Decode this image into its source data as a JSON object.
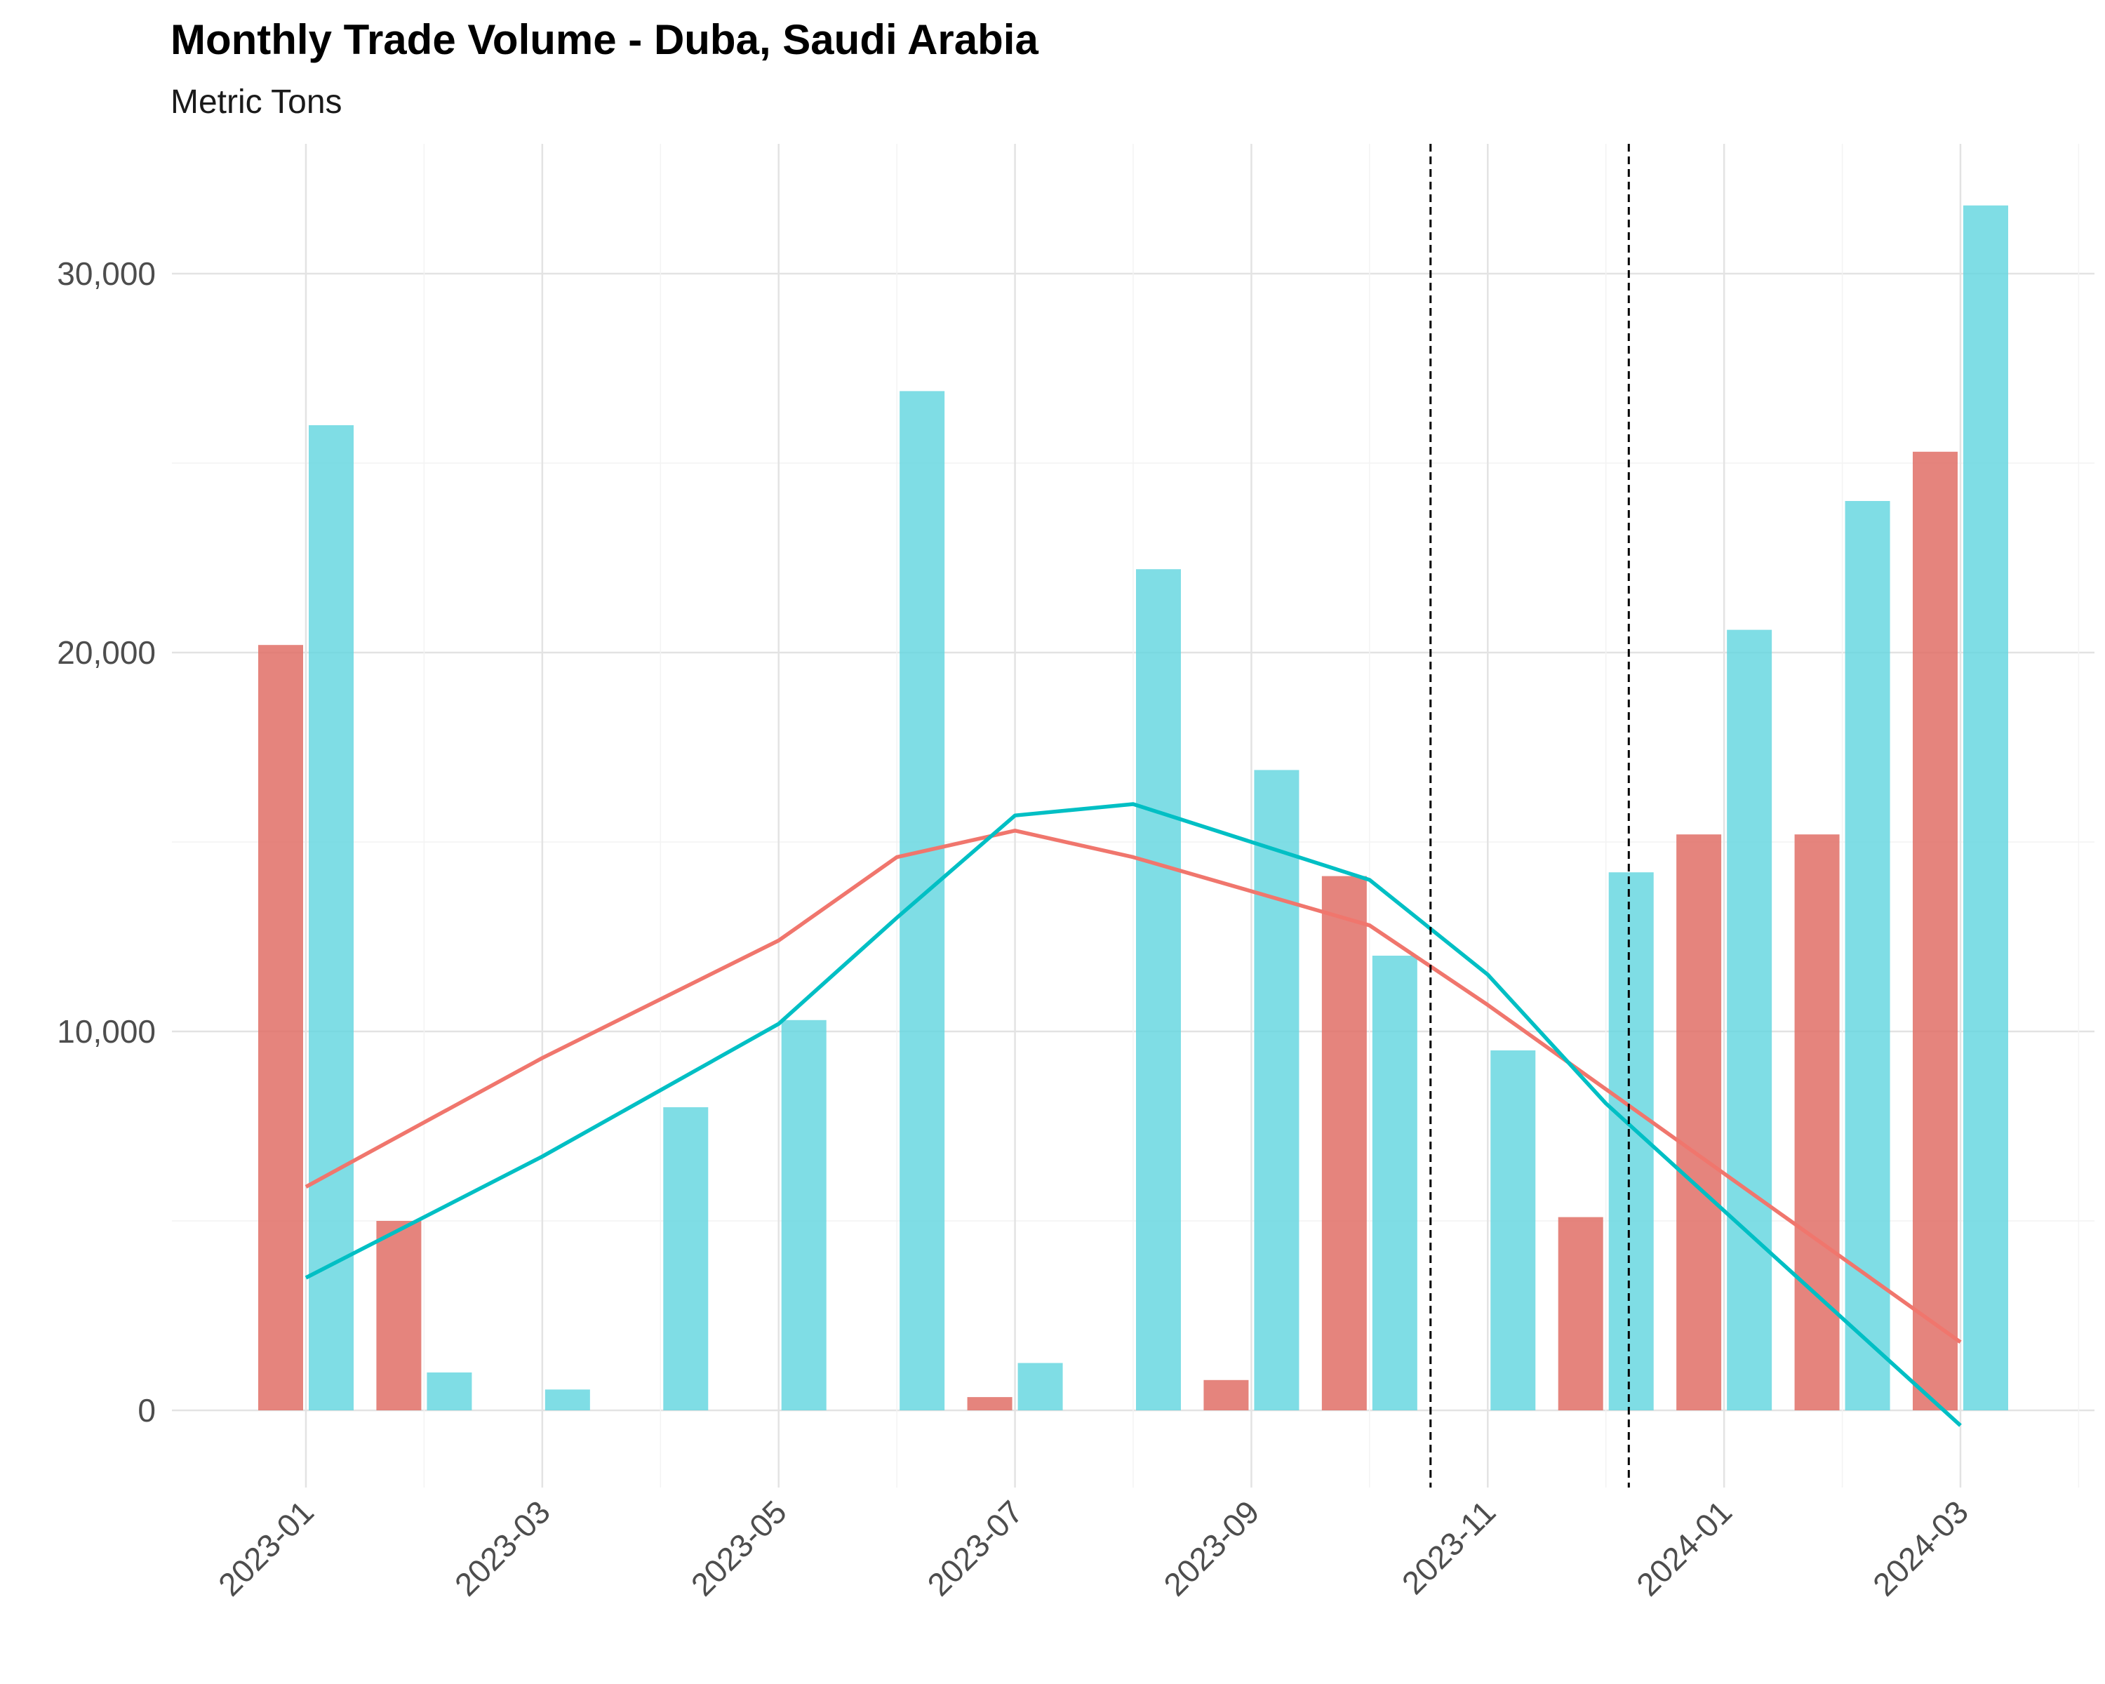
{
  "chart_data": {
    "type": "bar",
    "title": "Monthly Trade Volume - Duba, Saudi Arabia",
    "subtitle": "Metric Tons",
    "xlabel": "",
    "ylabel": "",
    "x_tick_labels": [
      "2023-01",
      "2023-03",
      "2023-05",
      "2023-07",
      "2023-09",
      "2023-11",
      "2024-01",
      "2024-03"
    ],
    "y_tick_labels": [
      "0",
      "10,000",
      "20,000",
      "30,000"
    ],
    "ylim": [
      -2000,
      33500
    ],
    "grid": true,
    "legend": "none",
    "months": [
      "2023-01",
      "2023-02",
      "2023-03",
      "2023-04",
      "2023-05",
      "2023-06",
      "2023-07",
      "2023-08",
      "2023-09",
      "2023-10",
      "2023-11",
      "2023-12",
      "2024-01",
      "2024-02",
      "2024-03"
    ],
    "bar_series": [
      {
        "color": "#E06F66",
        "values": [
          20200,
          5000,
          0,
          0,
          0,
          0,
          350,
          0,
          800,
          14100,
          0,
          5100,
          15200,
          15200,
          25300
        ]
      },
      {
        "color": "#5FD5DE",
        "values": [
          26000,
          1000,
          550,
          8000,
          10300,
          26900,
          1250,
          22200,
          16900,
          12000,
          9500,
          14200,
          20600,
          24000,
          31800
        ]
      }
    ],
    "line_series": [
      {
        "color": "#F0766D",
        "points": [
          [
            "2023-01",
            5900
          ],
          [
            "2023-03",
            9300
          ],
          [
            "2023-05",
            12400
          ],
          [
            "2023-06",
            14600
          ],
          [
            "2023-07",
            15300
          ],
          [
            "2023-08",
            14600
          ],
          [
            "2023-10",
            12800
          ],
          [
            "2023-11",
            10700
          ],
          [
            "2024-03",
            1800
          ]
        ]
      },
      {
        "color": "#00BFC4",
        "points": [
          [
            "2023-01",
            3500
          ],
          [
            "2023-03",
            6700
          ],
          [
            "2023-05",
            10200
          ],
          [
            "2023-06",
            13000
          ],
          [
            "2023-07",
            15700
          ],
          [
            "2023-08",
            16000
          ],
          [
            "2023-10",
            14000
          ],
          [
            "2023-11",
            11500
          ],
          [
            "2023-12",
            8100
          ],
          [
            "2024-03",
            -400
          ]
        ]
      }
    ],
    "reference_lines": [
      "2023-10-17",
      "2023-12-07"
    ]
  }
}
